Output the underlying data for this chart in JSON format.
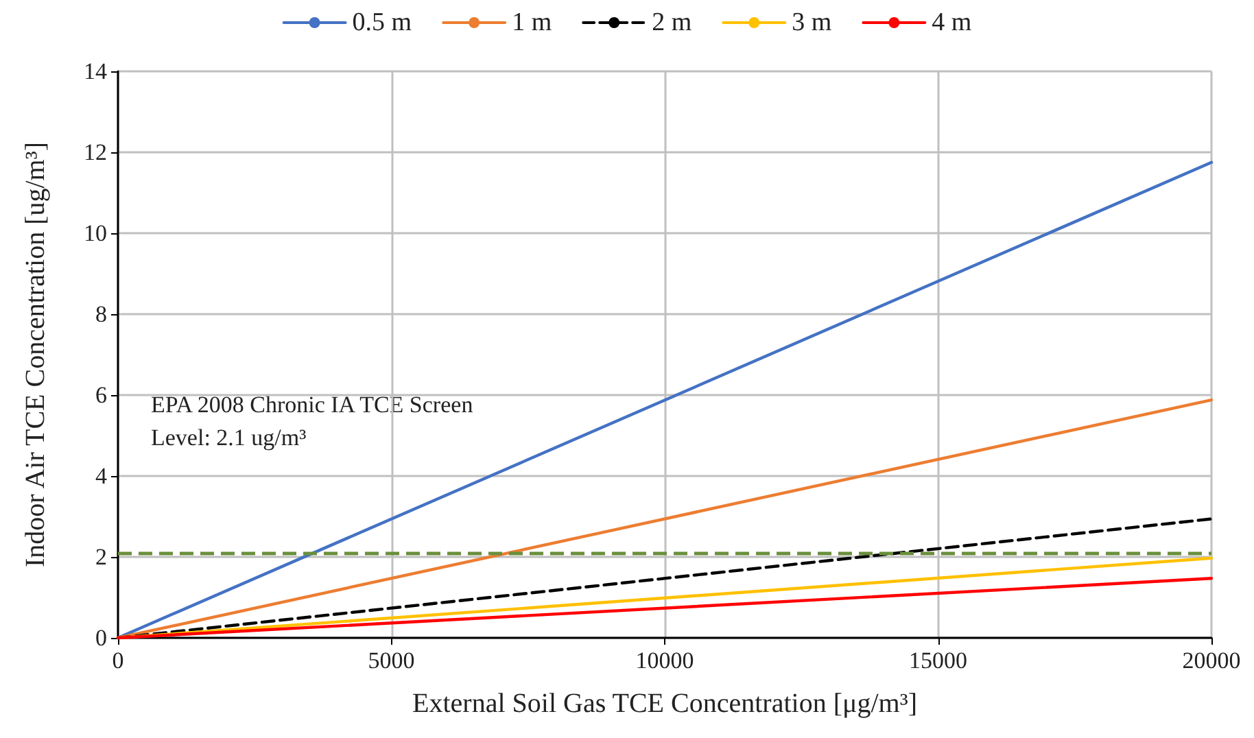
{
  "chart_data": {
    "type": "line",
    "xlabel": "External Soil Gas TCE Concentration [μg/m³]",
    "ylabel": "Indoor Air TCE Concentration [ug/m³]",
    "x": [
      0,
      20000
    ],
    "series": [
      {
        "name": "0.5 m",
        "color": "#4472c4",
        "values": [
          0,
          11.75
        ]
      },
      {
        "name": "1 m",
        "color": "#ed7d31",
        "values": [
          0,
          5.88
        ]
      },
      {
        "name": "2 m",
        "color": "#000000",
        "values": [
          0,
          2.94
        ],
        "line_style": "dashed"
      },
      {
        "name": "3 m",
        "color": "#ffc000",
        "values": [
          0,
          1.97
        ]
      },
      {
        "name": "4 m",
        "color": "#ff0000",
        "values": [
          0,
          1.47
        ]
      }
    ],
    "xlim": [
      0,
      20000
    ],
    "xticks": [
      0,
      5000,
      10000,
      15000,
      20000
    ],
    "ylim": [
      0,
      14
    ],
    "yticks": [
      0,
      2,
      4,
      6,
      8,
      10,
      12,
      14
    ],
    "ref_lines": [
      {
        "axis": "y",
        "value": 2.1,
        "color": "#6a8f3c",
        "line_style": "dashed"
      }
    ],
    "annotations": [
      "EPA 2008 Chronic IA TCE Screen\nLevel: 2.1 ug/m³"
    ],
    "grid": true,
    "legend": "top",
    "marker": "none",
    "line_style": "solid"
  }
}
